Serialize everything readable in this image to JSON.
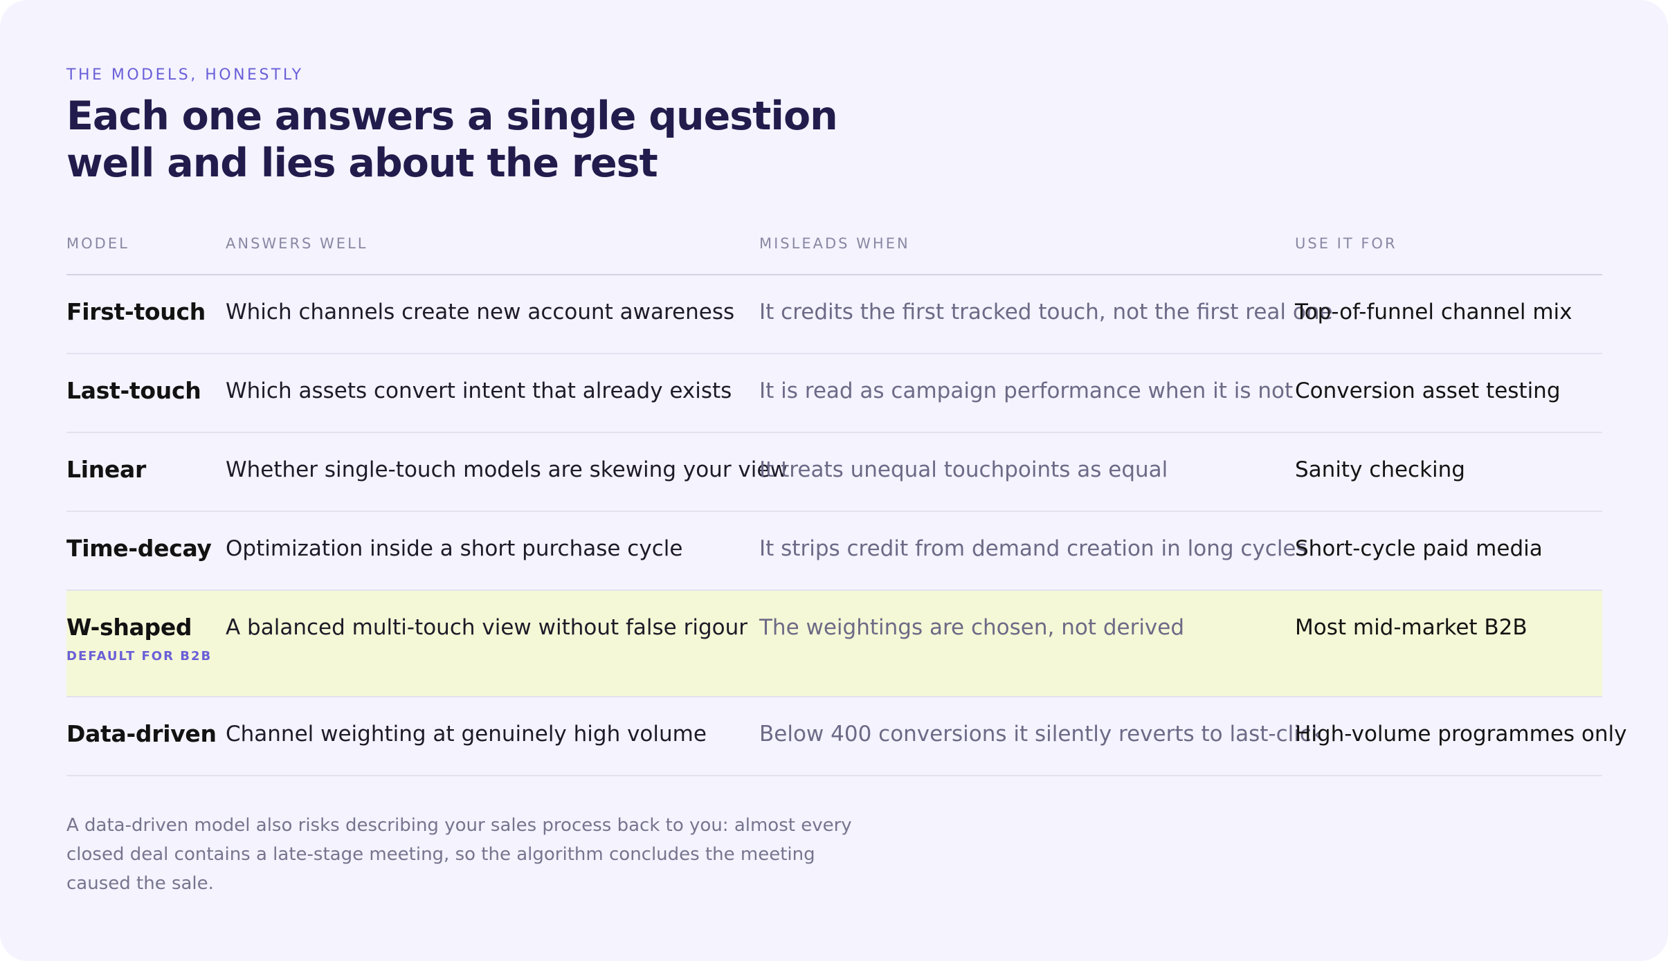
{
  "header": {
    "eyebrow": "THE MODELS, HONESTLY",
    "title_line1": "Each one answers a single question",
    "title_line2": "well and lies about the rest"
  },
  "table": {
    "columns": [
      "MODEL",
      "ANSWERS WELL",
      "MISLEADS WHEN",
      "USE IT FOR"
    ],
    "rows": [
      {
        "model": "First-touch",
        "answers": "Which channels create new account awareness",
        "misleads": "It credits the first tracked touch, not the first real one",
        "use": "Top-of-funnel channel mix"
      },
      {
        "model": "Last-touch",
        "answers": "Which assets convert intent that already exists",
        "misleads": "It is read as campaign performance when it is not",
        "use": "Conversion asset testing"
      },
      {
        "model": "Linear",
        "answers": "Whether single-touch models are skewing your view",
        "misleads": "It treats unequal touchpoints as equal",
        "use": "Sanity checking"
      },
      {
        "model": "Time-decay",
        "answers": "Optimization inside a short purchase cycle",
        "misleads": "It strips credit from demand creation in long cycles",
        "use": "Short-cycle paid media"
      },
      {
        "model": "W-shaped",
        "badge": "DEFAULT FOR B2B",
        "answers": "A balanced multi-touch view without false rigour",
        "misleads": "The weightings are chosen, not derived",
        "use": "Most mid-market B2B"
      },
      {
        "model": "Data-driven",
        "answers": "Channel weighting at genuinely high volume",
        "misleads": "Below 400 conversions it silently reverts to last-click",
        "use": "High-volume programmes only"
      }
    ]
  },
  "footnote": "A data-driven model also risks describing your sales process back to you: almost every closed deal contains a late-stage meeting, so the algorithm concludes the meeting caused the sale.",
  "colors": {
    "accent": "#6a5fd8",
    "title": "#211c4c",
    "card_bg": "#f4f3fe",
    "highlight_row": "#f5f8d6"
  }
}
